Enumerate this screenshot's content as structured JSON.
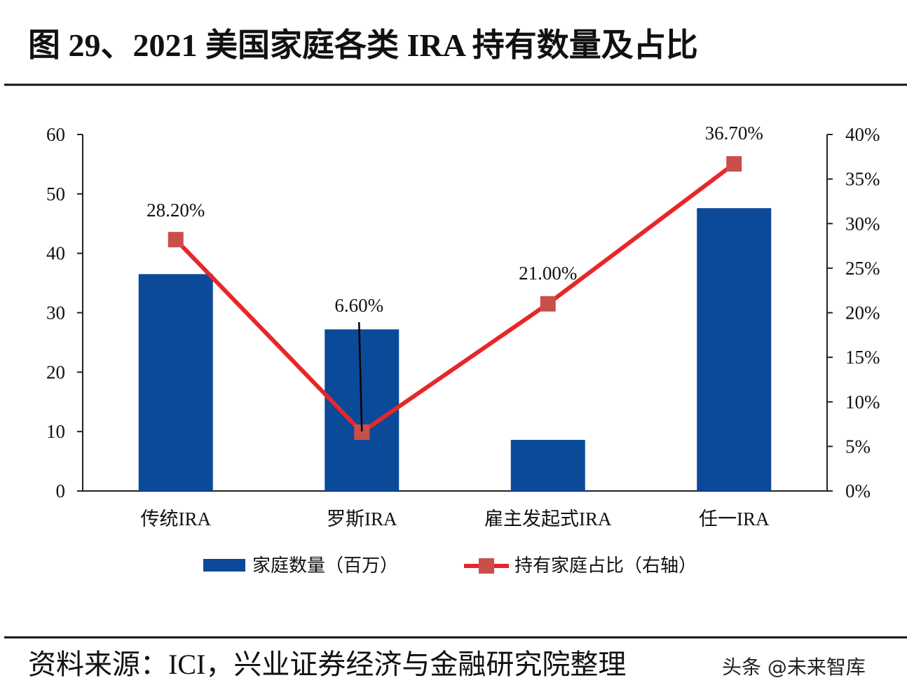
{
  "header": {
    "title": "图 29、2021 美国家庭各类 IRA 持有数量及占比"
  },
  "footer": {
    "source": "资料来源：ICI，兴业证券经济与金融研究院整理",
    "watermark": "头条 @未来智库"
  },
  "chart_data": {
    "type": "bar+line",
    "title": "图 29、2021 美国家庭各类 IRA 持有数量及占比",
    "categories": [
      "传统IRA",
      "罗斯IRA",
      "雇主发起式IRA",
      "任一IRA"
    ],
    "series": [
      {
        "name": "家庭数量（百万）",
        "type": "bar",
        "axis": "left",
        "color": "#0b4a99",
        "values": [
          36.5,
          27.2,
          8.6,
          47.6
        ]
      },
      {
        "name": "持有家庭占比（右轴）",
        "type": "line",
        "axis": "right",
        "color": "#e8262a",
        "marker_color": "#c9504a",
        "values": [
          28.2,
          6.6,
          21.0,
          36.7
        ],
        "data_labels": [
          "28.20%",
          "6.60%",
          "21.00%",
          "36.70%"
        ]
      }
    ],
    "y_left": {
      "lim": [
        0,
        60
      ],
      "ticks": [
        "0",
        "10",
        "20",
        "30",
        "40",
        "50",
        "60"
      ]
    },
    "y_right": {
      "lim": [
        0,
        40
      ],
      "ticks": [
        "0%",
        "5%",
        "10%",
        "15%",
        "20%",
        "25%",
        "30%",
        "35%",
        "40%"
      ]
    },
    "grid": false,
    "legend": "bottom"
  }
}
